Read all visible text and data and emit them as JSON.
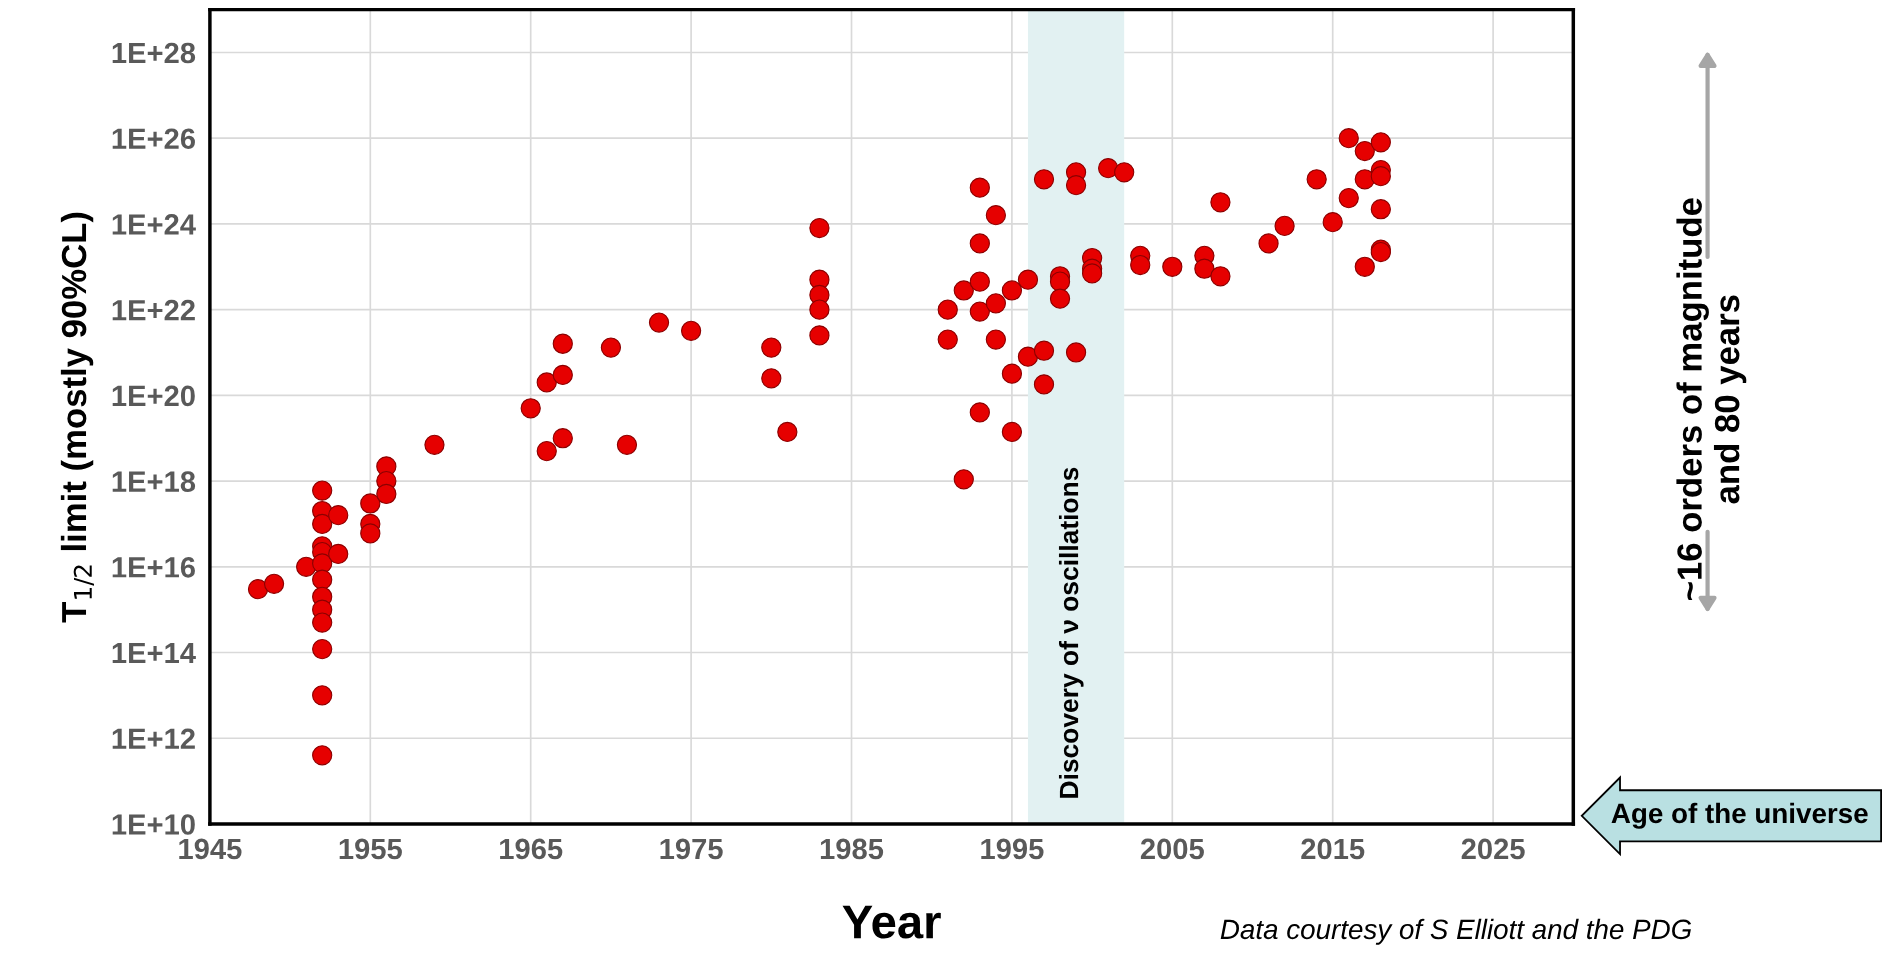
{
  "chart_data": {
    "type": "scatter",
    "xlabel": "Year",
    "ylabel": "T$_{1/2}$ limit (mostly 90%CL)",
    "x": [
      1948,
      1949,
      1951,
      1952,
      1952,
      1952,
      1952,
      1952,
      1952,
      1952,
      1952,
      1952,
      1952,
      1952,
      1952,
      1952,
      1953,
      1953,
      1955,
      1955,
      1955,
      1956,
      1956,
      1956,
      1959,
      1965,
      1966,
      1966,
      1967,
      1967,
      1967,
      1970,
      1971,
      1973,
      1975,
      1980,
      1980,
      1981,
      1983,
      1983,
      1983,
      1983,
      1983,
      1991,
      1991,
      1992,
      1992,
      1993,
      1993,
      1993,
      1993,
      1993,
      1994,
      1994,
      1994,
      1995,
      1995,
      1995,
      1996,
      1996,
      1997,
      1997,
      1997,
      1998,
      1998,
      1998,
      1999,
      1999,
      1999,
      2000,
      2000,
      2000,
      2001,
      2002,
      2003,
      2003,
      2005,
      2007,
      2007,
      2008,
      2008,
      2011,
      2012,
      2014,
      2015,
      2016,
      2016,
      2017,
      2017,
      2017,
      2018,
      2018,
      2018,
      2018,
      2018,
      2018
    ],
    "values": [
      3000000000000000.0,
      4000000000000000.0,
      1e+16,
      6e+17,
      2e+17,
      1e+17,
      3e+16,
      2.2e+16,
      1.2e+16,
      5000000000000000.0,
      2000000000000000.0,
      1000000000000000.0,
      500000000000000.0,
      120000000000000.0,
      10000000000000.0,
      400000000000.0,
      1.6e+17,
      2e+16,
      3e+17,
      1e+17,
      6e+16,
      2.2e+18,
      1e+18,
      5e+17,
      7e+18,
      5e+19,
      5e+18,
      2e+20,
      1.6e+21,
      3e+20,
      1e+19,
      1.3e+21,
      7e+18,
      5e+21,
      3.2e+21,
      1.3e+21,
      2.5e+20,
      1.4e+19,
      8e+23,
      5e+22,
      2.2e+22,
      1e+22,
      2.5e+21,
      1e+22,
      2e+21,
      1.1e+18,
      2.8e+22,
      7e+24,
      3.5e+23,
      4.5e+22,
      9e+21,
      4e+19,
      1.6e+24,
      1.4e+22,
      2e+21,
      2.8e+22,
      3.2e+20,
      1.4e+19,
      5e+22,
      8e+20,
      1.1e+25,
      1.1e+21,
      1.8e+20,
      6e+22,
      4.5e+22,
      1.8e+22,
      1.6e+25,
      8e+24,
      1e+21,
      1.6e+23,
      9e+22,
      7e+22,
      2e+25,
      1.6e+25,
      1.8e+23,
      1.1e+23,
      1e+23,
      1.8e+23,
      9e+22,
      3.2e+24,
      6e+22,
      3.5e+23,
      9e+23,
      1.1e+25,
      1.1e+24,
      1e+26,
      4e+24,
      5e+25,
      1.1e+25,
      1e+23,
      8e+25,
      1.8e+25,
      1.3e+25,
      2.2e+24,
      2.5e+23,
      2.2e+23
    ],
    "color": "#e60000",
    "marker": "circle",
    "log": "y",
    "grid": true,
    "xlim": [
      1945,
      2030
    ],
    "xticks": [
      1945,
      1955,
      1965,
      1975,
      1985,
      1995,
      2005,
      2015,
      2025
    ],
    "ylim": [
      10000000000.0,
      1e+29
    ],
    "yticks": [
      {
        "value": 10000000000.0,
        "label": "1E+10"
      },
      {
        "value": 1000000000000.0,
        "label": "1E+12"
      },
      {
        "value": 100000000000000.0,
        "label": "1E+14"
      },
      {
        "value": 1e+16,
        "label": "1E+16"
      },
      {
        "value": 1e+18,
        "label": "1E+18"
      },
      {
        "value": 1e+20,
        "label": "1E+20"
      },
      {
        "value": 1e+22,
        "label": "1E+22"
      },
      {
        "value": 1e+24,
        "label": "1E+24"
      },
      {
        "value": 1e+26,
        "label": "1E+26"
      },
      {
        "value": 1e+28,
        "label": "1E+28"
      }
    ],
    "bands": [
      {
        "axis": "x",
        "from": 1996,
        "to": 2002,
        "label": "Discovery of ν oscillations",
        "color": "#e2f1f2"
      }
    ],
    "annotations": [
      "Age of the universe",
      "~16 orders of magnitude\nand 80 years",
      "Data courtesy of S Elliott and the PDG"
    ]
  }
}
